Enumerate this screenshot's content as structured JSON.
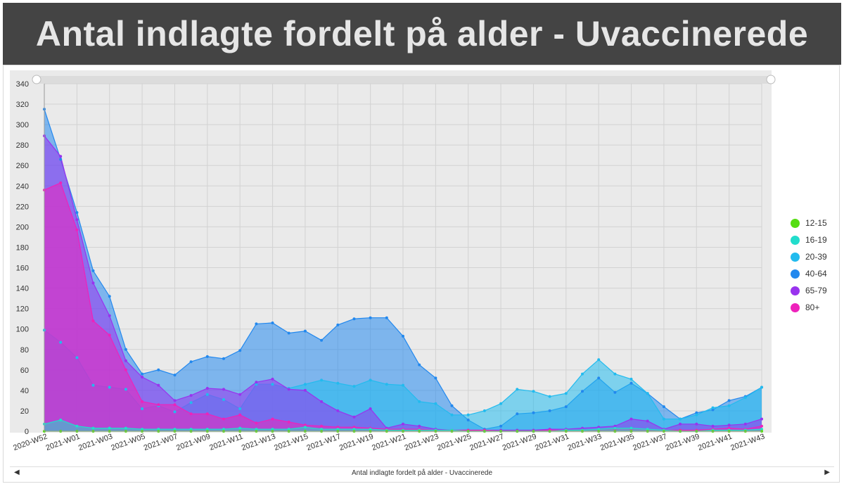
{
  "banner": {
    "title": "Antal indlagte fordelt på alder - Uvaccinerede"
  },
  "footer": {
    "caption": "Antal indlagte fordelt på alder - Uvaccinerede"
  },
  "chart_data": {
    "type": "area",
    "title": "Antal indlagte fordelt på alder - Uvaccinerede",
    "xlabel": "",
    "ylabel": "",
    "ylim": [
      0,
      340
    ],
    "yticks": [
      0,
      20,
      40,
      60,
      80,
      100,
      120,
      140,
      160,
      180,
      200,
      220,
      240,
      260,
      280,
      300,
      320,
      340
    ],
    "grid": true,
    "legend_position": "right",
    "x": [
      "2020-W52",
      "2021-W00",
      "2021-W01",
      "2021-W02",
      "2021-W03",
      "2021-W04",
      "2021-W05",
      "2021-W06",
      "2021-W07",
      "2021-W08",
      "2021-W09",
      "2021-W10",
      "2021-W11",
      "2021-W12",
      "2021-W13",
      "2021-W14",
      "2021-W15",
      "2021-W16",
      "2021-W17",
      "2021-W18",
      "2021-W19",
      "2021-W20",
      "2021-W21",
      "2021-W22",
      "2021-W23",
      "2021-W24",
      "2021-W25",
      "2021-W26",
      "2021-W27",
      "2021-W28",
      "2021-W29",
      "2021-W30",
      "2021-W31",
      "2021-W32",
      "2021-W33",
      "2021-W34",
      "2021-W35",
      "2021-W36",
      "2021-W37",
      "2021-W38",
      "2021-W39",
      "2021-W40",
      "2021-W41",
      "2021-W42",
      "2021-W43"
    ],
    "xtick_labels": [
      "2020-W52",
      "2021-W01",
      "2021-W03",
      "2021-W05",
      "2021-W07",
      "2021-W09",
      "2021-W11",
      "2021-W13",
      "2021-W15",
      "2021-W17",
      "2021-W19",
      "2021-W21",
      "2021-W23",
      "2021-W25",
      "2021-W27",
      "2021-W29",
      "2021-W31",
      "2021-W33",
      "2021-W35",
      "2021-W37",
      "2021-W39",
      "2021-W41",
      "2021-W43"
    ],
    "xtick_index": [
      0,
      2,
      4,
      6,
      8,
      10,
      12,
      14,
      16,
      18,
      20,
      22,
      24,
      26,
      28,
      30,
      32,
      34,
      36,
      38,
      40,
      42,
      44
    ],
    "series": [
      {
        "name": "12-15",
        "color": "#55dd11",
        "values": [
          0,
          0,
          0,
          0,
          0,
          0,
          0,
          0,
          0,
          0,
          0,
          0,
          0,
          0,
          0,
          0,
          0,
          0,
          0,
          0,
          0,
          0,
          0,
          0,
          0,
          0,
          0,
          0,
          0,
          0,
          0,
          0,
          0,
          0,
          0,
          0,
          0,
          0,
          0,
          0,
          0,
          0,
          0,
          0,
          0
        ]
      },
      {
        "name": "16-19",
        "color": "#22ddcc",
        "values": [
          7,
          11,
          5,
          3,
          3,
          3,
          2,
          2,
          2,
          2,
          2,
          2,
          3,
          2,
          2,
          2,
          4,
          2,
          2,
          2,
          2,
          1,
          1,
          1,
          1,
          1,
          0,
          0,
          0,
          0,
          0,
          0,
          1,
          1,
          2,
          3,
          3,
          2,
          1,
          0,
          0,
          1,
          1,
          1,
          2
        ]
      },
      {
        "name": "20-39",
        "color": "#22bbee",
        "values": [
          99,
          87,
          72,
          45,
          43,
          41,
          22,
          25,
          19,
          28,
          36,
          31,
          22,
          46,
          46,
          42,
          46,
          50,
          47,
          44,
          50,
          46,
          45,
          29,
          27,
          16,
          16,
          20,
          27,
          41,
          39,
          34,
          37,
          56,
          70,
          56,
          51,
          37,
          12,
          12,
          16,
          23,
          25,
          33,
          43
        ]
      },
      {
        "name": "40-64",
        "color": "#2288ee",
        "values": [
          315,
          266,
          214,
          157,
          132,
          80,
          56,
          60,
          55,
          68,
          73,
          71,
          79,
          105,
          106,
          96,
          98,
          89,
          104,
          110,
          111,
          111,
          93,
          65,
          52,
          25,
          11,
          2,
          5,
          17,
          18,
          20,
          24,
          39,
          52,
          38,
          47,
          37,
          24,
          12,
          18,
          21,
          30,
          34,
          43
        ]
      },
      {
        "name": "65-79",
        "color": "#9933ee",
        "values": [
          289,
          269,
          207,
          145,
          113,
          69,
          53,
          45,
          30,
          35,
          42,
          41,
          36,
          48,
          51,
          41,
          40,
          29,
          20,
          14,
          22,
          3,
          7,
          5,
          2,
          1,
          1,
          1,
          1,
          1,
          1,
          2,
          2,
          3,
          4,
          5,
          12,
          10,
          2,
          7,
          7,
          5,
          6,
          7,
          12
        ]
      },
      {
        "name": "80+",
        "color": "#ee22bb",
        "values": [
          236,
          243,
          197,
          108,
          94,
          60,
          29,
          26,
          26,
          17,
          17,
          12,
          16,
          8,
          12,
          9,
          6,
          5,
          4,
          4,
          3,
          2,
          2,
          2,
          1,
          1,
          1,
          1,
          0,
          0,
          0,
          1,
          1,
          1,
          1,
          2,
          2,
          1,
          1,
          1,
          1,
          2,
          3,
          2,
          5
        ]
      }
    ]
  }
}
